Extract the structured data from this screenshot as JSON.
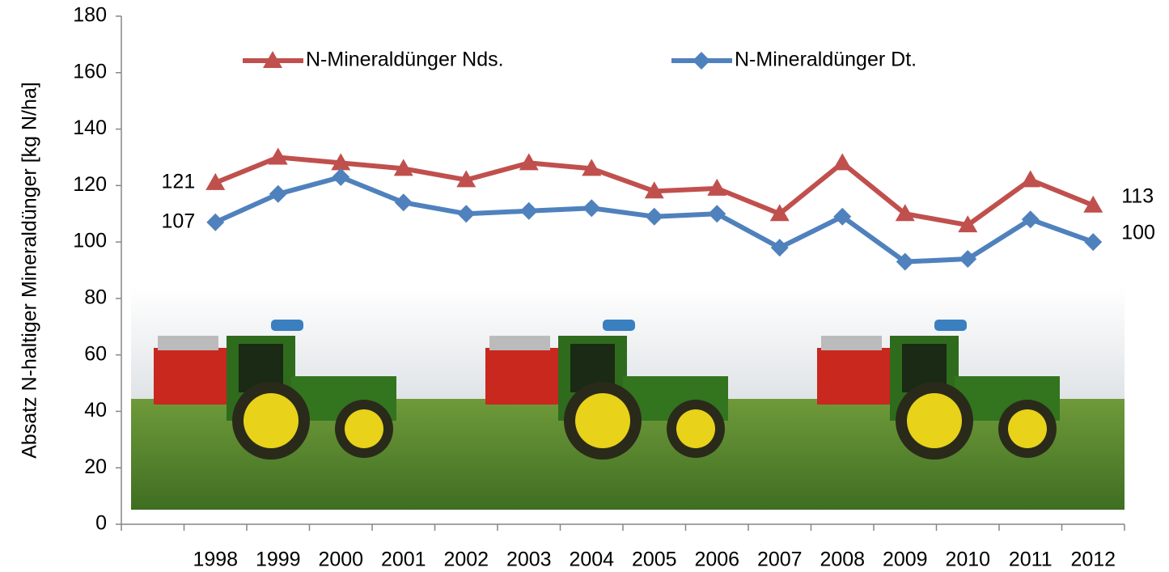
{
  "chart_data": {
    "type": "line",
    "y_label": "Absatz N-haltiger Mineraldünger [kg N/ha]",
    "categories": [
      null,
      "1998",
      "1999",
      "2000",
      "2001",
      "2002",
      "2003",
      "2004",
      "2005",
      "2006",
      "2007",
      "2008",
      "2009",
      "2010",
      "2011",
      "2012"
    ],
    "series": [
      {
        "name": "N-Mineraldünger Nds.",
        "color": "#c0504d",
        "marker": "triangle",
        "values": [
          null,
          121,
          130,
          128,
          126,
          122,
          128,
          126,
          118,
          119,
          110,
          128,
          110,
          106,
          122,
          113
        ]
      },
      {
        "name": "N-Mineraldünger Dt.",
        "color": "#4f81bd",
        "marker": "diamond",
        "values": [
          null,
          107,
          117,
          123,
          114,
          110,
          111,
          112,
          109,
          110,
          98,
          109,
          93,
          94,
          108,
          100
        ]
      }
    ],
    "ylim": [
      0,
      180
    ],
    "yticks": [
      0,
      20,
      40,
      60,
      80,
      100,
      120,
      140,
      160,
      180
    ],
    "legend": "top"
  }
}
